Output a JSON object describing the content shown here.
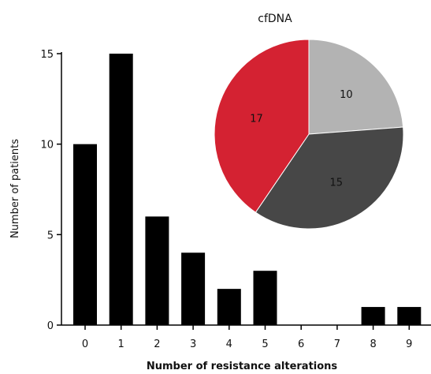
{
  "chart_data": [
    {
      "type": "bar",
      "categories": [
        "0",
        "1",
        "2",
        "3",
        "4",
        "5",
        "6",
        "7",
        "8",
        "9"
      ],
      "values": [
        10,
        15,
        6,
        4,
        2,
        3,
        0,
        0,
        1,
        1
      ],
      "xlabel": "Number of resistance alterations",
      "ylabel": "Number of patients",
      "ylim": [
        0,
        15
      ],
      "yticks": [
        0,
        5,
        10,
        15
      ],
      "bar_color": "#000000",
      "grid": false
    },
    {
      "type": "pie",
      "title": "cfDNA",
      "slices": [
        {
          "label": "10",
          "value": 10,
          "color": "#b3b3b3"
        },
        {
          "label": "15",
          "value": 15,
          "color": "#474747"
        },
        {
          "label": "17",
          "value": 17,
          "color": "#d42232"
        }
      ]
    }
  ]
}
